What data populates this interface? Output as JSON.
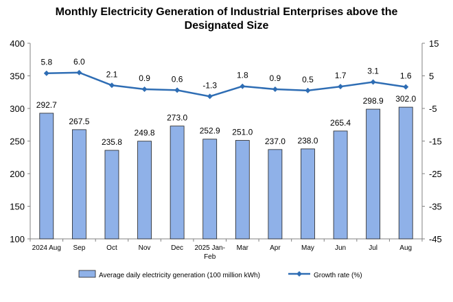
{
  "chart_data": {
    "type": "bar",
    "title": "Monthly Electricity Generation of Industrial Enterprises above the Designated Size",
    "categories": [
      "2024 Aug",
      "Sep",
      "Oct",
      "Nov",
      "Dec",
      "2025 Jan-Feb",
      "Mar",
      "Apr",
      "May",
      "Jun",
      "Jul",
      "Aug"
    ],
    "category_labels": [
      [
        "2024 Aug"
      ],
      [
        "Sep"
      ],
      [
        "Oct"
      ],
      [
        "Nov"
      ],
      [
        "Dec"
      ],
      [
        "2025 Jan-",
        "Feb"
      ],
      [
        "Mar"
      ],
      [
        "Apr"
      ],
      [
        "May"
      ],
      [
        "Jun"
      ],
      [
        "Jul"
      ],
      [
        "Aug"
      ]
    ],
    "series": [
      {
        "name": "Average daily electricity generation (100 million kWh)",
        "type": "bar",
        "axis": "left",
        "color": "#8fb1e8",
        "values": [
          292.7,
          267.5,
          235.8,
          249.8,
          273.0,
          252.9,
          251.0,
          237.0,
          238.0,
          265.4,
          298.9,
          302.0
        ],
        "labels": [
          "292.7",
          "267.5",
          "235.8",
          "249.8",
          "273.0",
          "252.9",
          "251.0",
          "237.0",
          "238.0",
          "265.4",
          "298.9",
          "302.0"
        ]
      },
      {
        "name": "Growth rate (%)",
        "type": "line",
        "axis": "right",
        "color": "#2e6db4",
        "values": [
          5.8,
          6.0,
          2.1,
          0.9,
          0.6,
          -1.3,
          1.8,
          0.9,
          0.5,
          1.7,
          3.1,
          1.6
        ],
        "labels": [
          "5.8",
          "6.0",
          "2.1",
          "0.9",
          "0.6",
          "-1.3",
          "1.8",
          "0.9",
          "0.5",
          "1.7",
          "3.1",
          "1.6"
        ]
      }
    ],
    "y_left": {
      "min": 100,
      "max": 400,
      "ticks": [
        100,
        150,
        200,
        250,
        300,
        350,
        400
      ]
    },
    "y_right": {
      "min": -45,
      "max": 15,
      "ticks": [
        -45,
        -35,
        -25,
        -15,
        -5,
        5,
        15
      ]
    },
    "grid": false,
    "legend_position": "bottom"
  }
}
